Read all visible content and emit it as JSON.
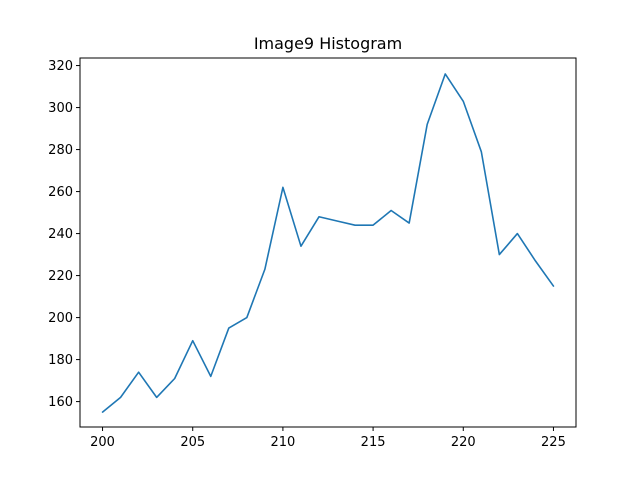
{
  "chart_data": {
    "type": "line",
    "title": "Image9 Histogram",
    "xlabel": "",
    "ylabel": "",
    "xlim": [
      198.75,
      226.25
    ],
    "ylim": [
      147.9,
      323.6
    ],
    "xticks": [
      200,
      205,
      210,
      215,
      220,
      225
    ],
    "yticks": [
      160,
      180,
      200,
      220,
      240,
      260,
      280,
      300,
      320
    ],
    "grid": false,
    "series": [
      {
        "color": "#1f77b4",
        "x": [
          200,
          201,
          202,
          203,
          204,
          205,
          206,
          207,
          208,
          209,
          210,
          211,
          212,
          213,
          214,
          215,
          216,
          217,
          218,
          219,
          220,
          221,
          222,
          223,
          224,
          225
        ],
        "y": [
          155,
          162,
          174,
          162,
          171,
          189,
          172,
          195,
          200,
          223,
          262,
          234,
          248,
          246,
          244,
          244,
          251,
          245,
          292,
          316,
          303,
          279,
          230,
          240,
          227,
          215
        ]
      }
    ]
  }
}
